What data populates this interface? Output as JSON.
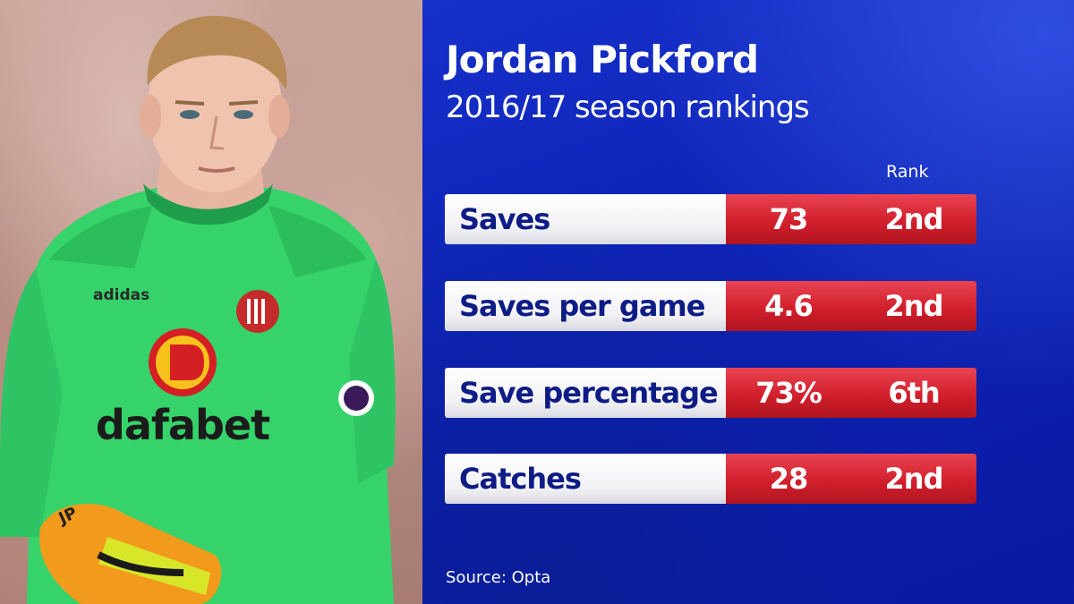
{
  "header": {
    "title": "Jordan Pickford",
    "subtitle": "2016/17 season rankings"
  },
  "table": {
    "rank_header": "Rank",
    "rows": [
      {
        "label": "Saves",
        "value": "73",
        "rank": "2nd"
      },
      {
        "label": "Saves per game",
        "value": "4.6",
        "rank": "2nd"
      },
      {
        "label": "Save percentage",
        "value": "73%",
        "rank": "6th"
      },
      {
        "label": "Catches",
        "value": "28",
        "rank": "2nd"
      }
    ]
  },
  "footer": {
    "source": "Source: Opta"
  },
  "photo": {
    "kit_brand": "adidas",
    "sponsor": "dafabet",
    "glove_initials": "JP"
  },
  "colors": {
    "panel_blue": "#0d22b4",
    "stat_red": "#d21f2c",
    "label_text": "#0e1c85",
    "jersey_green": "#35d36a"
  }
}
